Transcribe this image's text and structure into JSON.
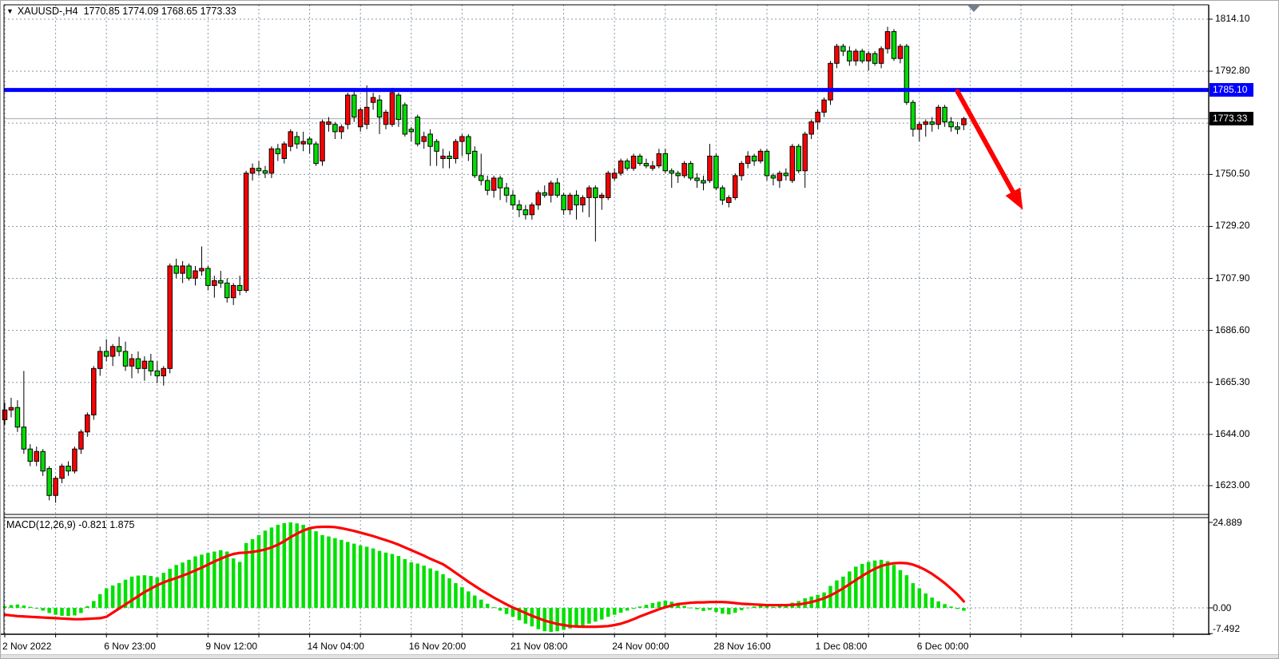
{
  "header": {
    "symbol_period": "XAUUSD-,H4",
    "ohlc_text": "1770.85 1774.09 1768.65 1773.33"
  },
  "macd_panel": {
    "label": "MACD(12,26,9) -0.821 1.875",
    "scale_labels": {
      "max": "24.889",
      "zero": "0.00",
      "min": "-7.492"
    }
  },
  "price_axis": {
    "badges": {
      "level_badge": {
        "text": "1785.10",
        "color": "#0000ff"
      },
      "last_price_badge": {
        "text": "1773.33",
        "color": "#000000"
      }
    }
  },
  "chart_data": {
    "type": "candlestick",
    "symbol": "XAUUSD-",
    "timeframe": "H4",
    "current_bar": {
      "open": 1770.85,
      "high": 1774.09,
      "low": 1768.65,
      "close": 1773.33
    },
    "bull_color": "#ff0000",
    "bear_color": "#00dd00",
    "grid_color": "#8696a6",
    "background": "#ffffff",
    "price_axis_ticks": [
      {
        "label": "1814.10",
        "value": 1814.1
      },
      {
        "label": "1792.80",
        "value": 1792.8
      },
      {
        "label": "1771.50",
        "value": 1771.5,
        "label_hidden": true
      },
      {
        "label": "1750.50",
        "value": 1750.5
      },
      {
        "label": "1729.20",
        "value": 1729.2
      },
      {
        "label": "1707.90",
        "value": 1707.9
      },
      {
        "label": "1686.60",
        "value": 1686.6
      },
      {
        "label": "1665.30",
        "value": 1665.3
      },
      {
        "label": "1644.00",
        "value": 1644.0
      },
      {
        "label": "1623.00",
        "value": 1623.0
      }
    ],
    "time_axis_labels": [
      {
        "text": "2 Nov 2022",
        "bar": 0
      },
      {
        "text": "6 Nov 23:00",
        "bar": 16
      },
      {
        "text": "9 Nov 12:00",
        "bar": 32
      },
      {
        "text": "14 Nov 04:00",
        "bar": 48
      },
      {
        "text": "16 Nov 20:00",
        "bar": 64
      },
      {
        "text": "21 Nov 08:00",
        "bar": 80
      },
      {
        "text": "24 Nov 00:00",
        "bar": 96
      },
      {
        "text": "28 Nov 16:00",
        "bar": 112
      },
      {
        "text": "1 Dec 08:00",
        "bar": 128
      },
      {
        "text": "6 Dec 00:00",
        "bar": 144
      }
    ],
    "levels": {
      "resistance_line": {
        "price": 1785.1,
        "color": "#0000ff",
        "width": 5
      },
      "last_price_line": {
        "price": 1773.33,
        "color": "#aaaaaa",
        "width": 1
      }
    },
    "arrow_annotation": {
      "color": "#ff0000",
      "from": {
        "bar": 150.0,
        "price": 1784.5
      },
      "to": {
        "bar": 160.3,
        "price": 1736.0
      }
    },
    "candles": [
      [
        1650,
        1657,
        1648,
        1654
      ],
      [
        1654,
        1659,
        1651,
        1655
      ],
      [
        1655,
        1658,
        1645,
        1647
      ],
      [
        1647,
        1670,
        1636,
        1638
      ],
      [
        1638,
        1640,
        1631,
        1633
      ],
      [
        1633,
        1639,
        1631,
        1637
      ],
      [
        1637,
        1638,
        1627,
        1629
      ],
      [
        1630,
        1631,
        1617,
        1619
      ],
      [
        1619,
        1627,
        1616,
        1626
      ],
      [
        1626,
        1632,
        1624,
        1631
      ],
      [
        1631,
        1633,
        1627,
        1629
      ],
      [
        1629,
        1639,
        1628,
        1638
      ],
      [
        1638,
        1646,
        1636,
        1645
      ],
      [
        1645,
        1653,
        1643,
        1652
      ],
      [
        1652,
        1672,
        1650,
        1671
      ],
      [
        1671,
        1680,
        1668,
        1678
      ],
      [
        1678,
        1683,
        1674,
        1676
      ],
      [
        1676,
        1681,
        1672,
        1680
      ],
      [
        1680,
        1684,
        1676,
        1678
      ],
      [
        1678,
        1682,
        1670,
        1672
      ],
      [
        1672,
        1677,
        1667,
        1675
      ],
      [
        1675,
        1678,
        1669,
        1671
      ],
      [
        1671,
        1676,
        1666,
        1674
      ],
      [
        1674,
        1677,
        1668,
        1670
      ],
      [
        1670,
        1674,
        1665,
        1668
      ],
      [
        1668,
        1672,
        1664,
        1671
      ],
      [
        1671,
        1714,
        1669,
        1713
      ],
      [
        1713,
        1716,
        1708,
        1710
      ],
      [
        1710,
        1715,
        1706,
        1713
      ],
      [
        1713,
        1714,
        1707,
        1708
      ],
      [
        1708,
        1713,
        1705,
        1711
      ],
      [
        1711,
        1721,
        1709,
        1712
      ],
      [
        1712,
        1713,
        1703,
        1705
      ],
      [
        1705,
        1709,
        1700,
        1707
      ],
      [
        1707,
        1711,
        1704,
        1706
      ],
      [
        1706,
        1708,
        1698,
        1700
      ],
      [
        1700,
        1706,
        1697,
        1705
      ],
      [
        1705,
        1709,
        1701,
        1703
      ],
      [
        1703,
        1752,
        1702,
        1751
      ],
      [
        1751,
        1755,
        1748,
        1753
      ],
      [
        1753,
        1756,
        1750,
        1752
      ],
      [
        1752,
        1754,
        1749,
        1751
      ],
      [
        1751,
        1762,
        1749,
        1761
      ],
      [
        1761,
        1763,
        1756,
        1759
      ],
      [
        1757,
        1764,
        1755,
        1763
      ],
      [
        1762,
        1769,
        1760,
        1768
      ],
      [
        1766,
        1768,
        1761,
        1763
      ],
      [
        1763,
        1768,
        1760,
        1764
      ],
      [
        1765,
        1766,
        1759,
        1763
      ],
      [
        1763,
        1764,
        1754,
        1755
      ],
      [
        1756,
        1773,
        1754,
        1772
      ],
      [
        1771,
        1774,
        1768,
        1772
      ],
      [
        1771,
        1772,
        1765,
        1768
      ],
      [
        1768,
        1771,
        1765,
        1770
      ],
      [
        1771,
        1784,
        1769,
        1783
      ],
      [
        1783,
        1785,
        1772,
        1774
      ],
      [
        1770,
        1778,
        1768,
        1777
      ],
      [
        1771,
        1787,
        1769,
        1778
      ],
      [
        1780,
        1784,
        1777,
        1782
      ],
      [
        1781,
        1783,
        1767,
        1774
      ],
      [
        1771,
        1777,
        1769,
        1776
      ],
      [
        1771,
        1786,
        1770,
        1784
      ],
      [
        1783,
        1784,
        1770,
        1773
      ],
      [
        1779,
        1780,
        1766,
        1767
      ],
      [
        1769,
        1770,
        1764,
        1768
      ],
      [
        1774,
        1775,
        1762,
        1763
      ],
      [
        1764,
        1768,
        1761,
        1766
      ],
      [
        1767,
        1769,
        1754,
        1762
      ],
      [
        1764,
        1765,
        1754,
        1760
      ],
      [
        1757,
        1761,
        1753,
        1758
      ],
      [
        1758,
        1760,
        1753,
        1757
      ],
      [
        1757,
        1765,
        1755,
        1764
      ],
      [
        1764,
        1767,
        1758,
        1766
      ],
      [
        1766,
        1767,
        1756,
        1759
      ],
      [
        1760,
        1762,
        1749,
        1750
      ],
      [
        1750,
        1759,
        1746,
        1748
      ],
      [
        1748,
        1750,
        1742,
        1744
      ],
      [
        1744,
        1750,
        1741,
        1749
      ],
      [
        1749,
        1750,
        1740,
        1745
      ],
      [
        1745,
        1747,
        1739,
        1742
      ],
      [
        1742,
        1744,
        1736,
        1738
      ],
      [
        1738,
        1740,
        1733,
        1736
      ],
      [
        1736,
        1738,
        1732,
        1734
      ],
      [
        1734,
        1739,
        1732,
        1738
      ],
      [
        1738,
        1744,
        1736,
        1743
      ],
      [
        1743,
        1746,
        1741,
        1742
      ],
      [
        1742,
        1748,
        1739,
        1747
      ],
      [
        1747,
        1749,
        1741,
        1742
      ],
      [
        1742,
        1743,
        1734,
        1736
      ],
      [
        1736,
        1743,
        1734,
        1742
      ],
      [
        1742,
        1744,
        1732,
        1738
      ],
      [
        1738,
        1742,
        1735,
        1741
      ],
      [
        1741,
        1746,
        1733,
        1745
      ],
      [
        1745,
        1746,
        1723,
        1741
      ],
      [
        1741,
        1743,
        1736,
        1742
      ],
      [
        1741,
        1752,
        1740,
        1751
      ],
      [
        1749,
        1753,
        1748,
        1751
      ],
      [
        1751,
        1757,
        1750,
        1756
      ],
      [
        1756,
        1757,
        1752,
        1753
      ],
      [
        1753,
        1759,
        1752,
        1758
      ],
      [
        1758,
        1759,
        1754,
        1755
      ],
      [
        1755,
        1757,
        1753,
        1754
      ],
      [
        1753,
        1756,
        1752,
        1754
      ],
      [
        1754,
        1761,
        1753,
        1759
      ],
      [
        1759,
        1761,
        1751,
        1752
      ],
      [
        1752,
        1753,
        1745,
        1751
      ],
      [
        1751,
        1752,
        1747,
        1750
      ],
      [
        1750,
        1756,
        1749,
        1755
      ],
      [
        1755,
        1756,
        1748,
        1749
      ],
      [
        1749,
        1751,
        1745,
        1748
      ],
      [
        1748,
        1750,
        1744,
        1747
      ],
      [
        1748,
        1763,
        1747,
        1758
      ],
      [
        1758,
        1759,
        1744,
        1745
      ],
      [
        1745,
        1746,
        1738,
        1740
      ],
      [
        1739,
        1742,
        1737,
        1741
      ],
      [
        1741,
        1751,
        1740,
        1750
      ],
      [
        1750,
        1756,
        1748,
        1755
      ],
      [
        1755,
        1760,
        1753,
        1758
      ],
      [
        1758,
        1759,
        1754,
        1756
      ],
      [
        1756,
        1761,
        1755,
        1760
      ],
      [
        1760,
        1761,
        1748,
        1750
      ],
      [
        1750,
        1751,
        1746,
        1749
      ],
      [
        1748,
        1752,
        1745,
        1751
      ],
      [
        1751,
        1753,
        1748,
        1750
      ],
      [
        1748,
        1763,
        1747,
        1762
      ],
      [
        1762,
        1763,
        1751,
        1752
      ],
      [
        1752,
        1768,
        1745,
        1767
      ],
      [
        1767,
        1773,
        1765,
        1772
      ],
      [
        1772,
        1777,
        1769,
        1776
      ],
      [
        1776,
        1782,
        1774,
        1781
      ],
      [
        1781,
        1797,
        1779,
        1796
      ],
      [
        1796,
        1804,
        1794,
        1803
      ],
      [
        1803,
        1804,
        1799,
        1801
      ],
      [
        1801,
        1803,
        1795,
        1797
      ],
      [
        1797,
        1802,
        1795,
        1801
      ],
      [
        1801,
        1802,
        1796,
        1797
      ],
      [
        1797,
        1801,
        1793,
        1800
      ],
      [
        1800,
        1801,
        1795,
        1796
      ],
      [
        1796,
        1803,
        1794,
        1802
      ],
      [
        1802,
        1811,
        1800,
        1809
      ],
      [
        1809,
        1810,
        1797,
        1798
      ],
      [
        1798,
        1804,
        1796,
        1803
      ],
      [
        1803,
        1804,
        1779,
        1780
      ],
      [
        1780,
        1781,
        1766,
        1769
      ],
      [
        1769,
        1772,
        1764,
        1771
      ],
      [
        1771,
        1773,
        1766,
        1772
      ],
      [
        1772,
        1774,
        1768,
        1771
      ],
      [
        1771,
        1779,
        1769,
        1778
      ],
      [
        1778,
        1779,
        1770,
        1772
      ],
      [
        1772,
        1774,
        1768,
        1770
      ],
      [
        1770,
        1772,
        1767,
        1769
      ],
      [
        1770.85,
        1774.09,
        1768.65,
        1773.33
      ]
    ],
    "macd": {
      "params": "12,26,9",
      "value": -0.821,
      "signal_value": 1.875,
      "scale_max": 24.889,
      "scale_min": -7.492,
      "histogram_color": "#00e000",
      "signal_color": "#ff0000",
      "histogram": [
        0.5,
        0.8,
        1.0,
        0.7,
        0.3,
        -0.2,
        -0.8,
        -1.5,
        -2.0,
        -2.3,
        -2.4,
        -2.2,
        -1.5,
        0.5,
        2.0,
        4.0,
        5.7,
        6.5,
        7.2,
        8.2,
        9.1,
        9.4,
        9.5,
        9.3,
        8.9,
        10.2,
        11.4,
        12.5,
        13.2,
        14.0,
        15.0,
        15.5,
        16.0,
        16.4,
        16.8,
        16.4,
        14.4,
        13.4,
        18.9,
        20.0,
        21.2,
        22.5,
        23.4,
        24.2,
        24.7,
        24.889,
        24.6,
        24.2,
        23.5,
        22.3,
        21.2,
        20.8,
        20.3,
        19.8,
        19.2,
        18.7,
        18.2,
        17.8,
        17.3,
        16.6,
        16.1,
        15.7,
        15.1,
        14.2,
        13.3,
        12.9,
        12.3,
        11.5,
        10.8,
        9.8,
        8.6,
        7.2,
        6.0,
        4.8,
        3.6,
        2.4,
        1.2,
        0.2,
        -0.8,
        -1.8,
        -2.6,
        -3.6,
        -4.6,
        -5.4,
        -6.2,
        -6.8,
        -7.0,
        -6.8,
        -6.4,
        -6.0,
        -5.6,
        -5.2,
        -4.6,
        -4.0,
        -3.4,
        -2.6,
        -2.0,
        -1.4,
        -0.8,
        -0.2,
        0.4,
        0.9,
        1.4,
        1.8,
        2.1,
        1.8,
        1.2,
        0.6,
        0.1,
        -0.4,
        -0.9,
        -0.6,
        -1.2,
        -1.7,
        -1.9,
        -1.4,
        -0.7,
        0.1,
        0.4,
        0.8,
        0.5,
        0.3,
        0.6,
        0.8,
        1.5,
        2.0,
        2.8,
        3.3,
        3.8,
        4.5,
        6.4,
        8.0,
        9.1,
        10.6,
        12.0,
        12.8,
        13.4,
        13.8,
        14.0,
        13.6,
        12.5,
        11.0,
        9.5,
        7.2,
        5.7,
        4.2,
        3.0,
        1.9,
        1.1,
        0.4,
        -0.3,
        -0.821
      ],
      "signal": [
        -2.0,
        -2.2,
        -2.4,
        -2.5,
        -2.6,
        -2.7,
        -2.8,
        -2.9,
        -3.0,
        -3.1,
        -3.2,
        -3.3,
        -3.3,
        -3.2,
        -3.1,
        -3.0,
        -2.6,
        -1.4,
        -0.2,
        1.0,
        2.2,
        3.4,
        4.6,
        5.6,
        6.6,
        7.4,
        8.1,
        8.7,
        9.4,
        10.1,
        10.9,
        11.7,
        12.6,
        13.5,
        14.3,
        15.1,
        15.7,
        16.0,
        16.1,
        16.3,
        16.6,
        17.0,
        17.6,
        18.4,
        19.4,
        20.6,
        21.6,
        22.5,
        23.2,
        23.5,
        23.6,
        23.6,
        23.5,
        23.2,
        22.8,
        22.4,
        21.9,
        21.4,
        20.9,
        20.3,
        19.7,
        19.1,
        18.4,
        17.6,
        16.8,
        16.0,
        15.2,
        14.3,
        13.5,
        12.7,
        11.5,
        10.2,
        8.9,
        7.6,
        6.4,
        5.2,
        4.1,
        3.0,
        2.0,
        1.0,
        0.1,
        -0.7,
        -1.5,
        -2.3,
        -3.0,
        -3.7,
        -4.2,
        -4.7,
        -5.0,
        -5.3,
        -5.4,
        -5.5,
        -5.5,
        -5.5,
        -5.4,
        -5.3,
        -5.0,
        -4.6,
        -4.0,
        -3.3,
        -2.5,
        -1.8,
        -1.1,
        -0.4,
        0.2,
        0.7,
        1.1,
        1.3,
        1.5,
        1.6,
        1.6,
        1.7,
        1.7,
        1.7,
        1.6,
        1.4,
        1.2,
        1.1,
        1.0,
        0.9,
        0.8,
        0.8,
        0.8,
        0.8,
        0.9,
        1.0,
        1.3,
        1.7,
        2.2,
        2.8,
        3.6,
        4.6,
        5.7,
        6.9,
        8.1,
        9.3,
        10.4,
        11.4,
        12.2,
        12.7,
        13.0,
        13.1,
        13.0,
        12.6,
        11.9,
        11.0,
        9.9,
        8.6,
        7.2,
        5.6,
        3.9,
        1.875
      ]
    }
  }
}
